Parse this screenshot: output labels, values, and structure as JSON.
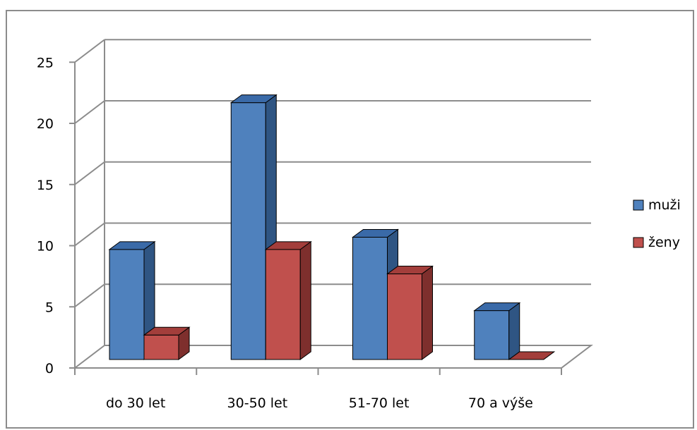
{
  "chart_data": {
    "type": "bar",
    "style": "3d-clustered-column",
    "categories": [
      "do 30 let",
      "30-50 let",
      "51-70 let",
      "70 a výše"
    ],
    "series": [
      {
        "name": "muži",
        "values": [
          9,
          21,
          10,
          4
        ],
        "color": "#4f81bd",
        "side_color": "#2f5583",
        "top_color": "#3a6aa8"
      },
      {
        "name": "ženy",
        "values": [
          2,
          9,
          7,
          0
        ],
        "color": "#c0504d",
        "side_color": "#7e2f2d",
        "top_color": "#a33e3b"
      }
    ],
    "ylim": [
      0,
      25
    ],
    "yticks": [
      "0",
      "5",
      "10",
      "15",
      "20",
      "25"
    ],
    "ytick_values": [
      0,
      5,
      10,
      15,
      20,
      25
    ],
    "grid": true,
    "legend_position": "right"
  }
}
